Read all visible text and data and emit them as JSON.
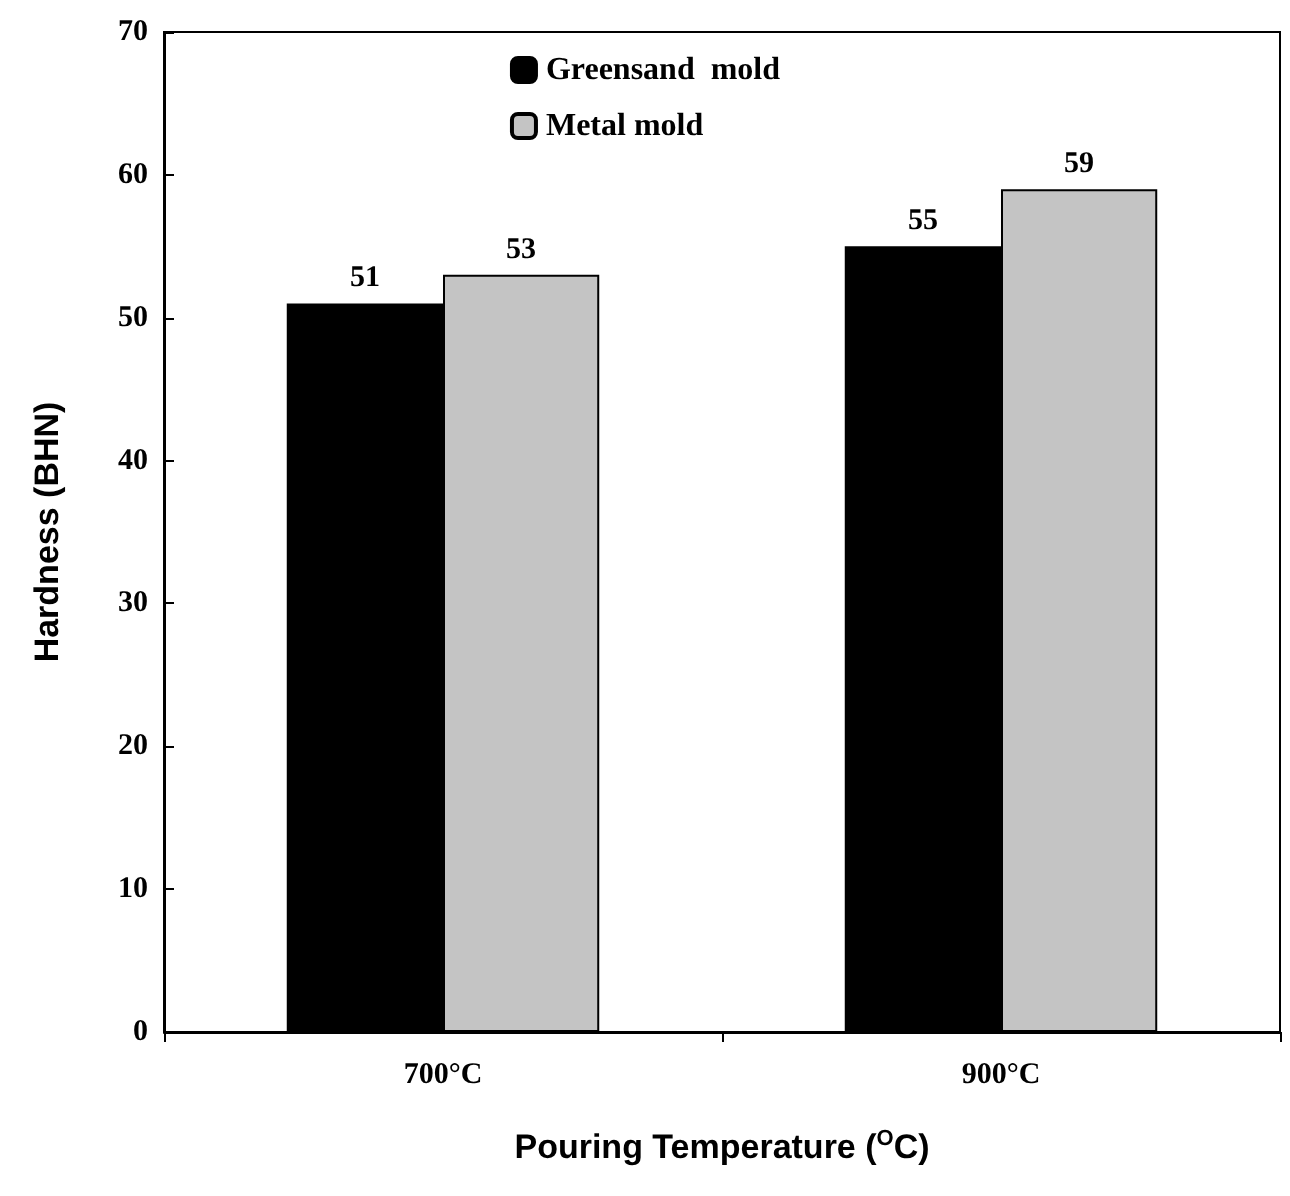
{
  "chart_data": {
    "type": "bar",
    "xlabel": "Pouring Temperature ($^{O}$C)",
    "ylabel": "Hardness (BHN)",
    "categories": [
      "700°C",
      "900°C"
    ],
    "series": [
      {
        "name": "Greensand  mold",
        "color": "#000000",
        "values": [
          51,
          55
        ]
      },
      {
        "name": "Metal mold",
        "color": "#c4c4c4",
        "values": [
          53,
          59
        ]
      }
    ],
    "ylim": [
      0,
      70
    ],
    "yticks": [
      0,
      10,
      20,
      30,
      40,
      50,
      60,
      70
    ],
    "grid": false,
    "legend": "top",
    "data_labels": true
  }
}
